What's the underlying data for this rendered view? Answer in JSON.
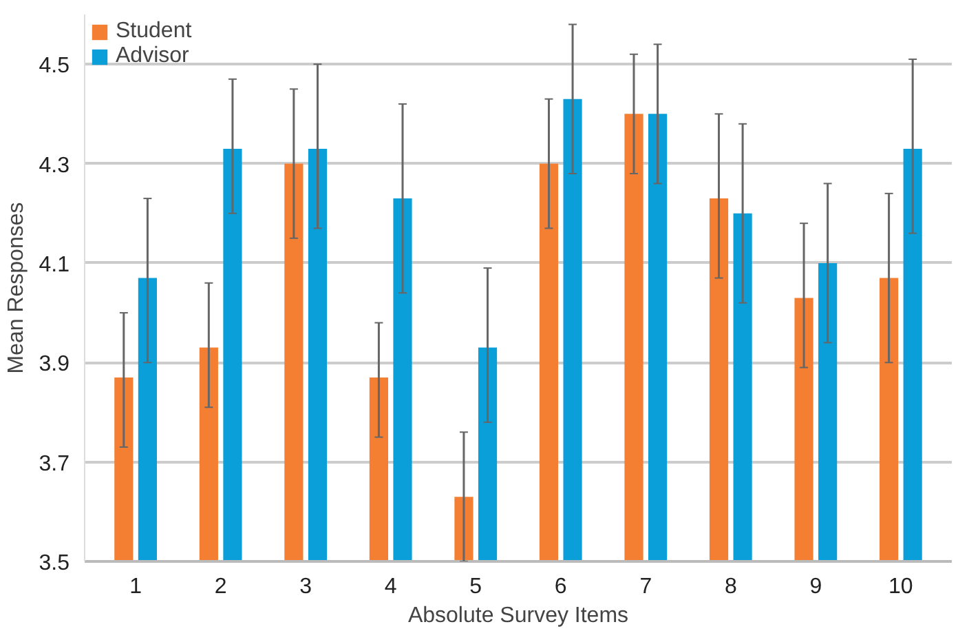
{
  "chart_data": {
    "type": "bar",
    "xlabel": "Absolute Survey Items",
    "ylabel": "Mean Responses",
    "categories": [
      "1",
      "2",
      "3",
      "4",
      "5",
      "6",
      "7",
      "8",
      "9",
      "10"
    ],
    "series": [
      {
        "name": "Student",
        "color": "#f47f32",
        "values": [
          3.87,
          3.93,
          4.3,
          3.87,
          3.63,
          4.3,
          4.4,
          4.23,
          4.03,
          4.07
        ],
        "errors": [
          [
            3.73,
            4.0
          ],
          [
            3.81,
            4.06
          ],
          [
            4.15,
            4.45
          ],
          [
            3.75,
            3.98
          ],
          [
            3.5,
            3.76
          ],
          [
            4.17,
            4.43
          ],
          [
            4.28,
            4.52
          ],
          [
            4.07,
            4.4
          ],
          [
            3.89,
            4.18
          ],
          [
            3.9,
            4.24
          ]
        ]
      },
      {
        "name": "Advisor",
        "color": "#0a9fd9",
        "values": [
          4.07,
          4.33,
          4.33,
          4.23,
          3.93,
          4.43,
          4.4,
          4.2,
          4.1,
          4.33
        ],
        "errors": [
          [
            3.9,
            4.23
          ],
          [
            4.2,
            4.47
          ],
          [
            4.17,
            4.5
          ],
          [
            4.04,
            4.42
          ],
          [
            3.78,
            4.09
          ],
          [
            4.28,
            4.58
          ],
          [
            4.26,
            4.54
          ],
          [
            4.02,
            4.38
          ],
          [
            3.94,
            4.26
          ],
          [
            4.16,
            4.51
          ]
        ]
      }
    ],
    "ylim": [
      3.5,
      4.6
    ],
    "yticks": [
      3.5,
      3.7,
      3.9,
      4.1,
      4.3,
      4.5
    ],
    "grid": "y",
    "legend": "top left"
  }
}
